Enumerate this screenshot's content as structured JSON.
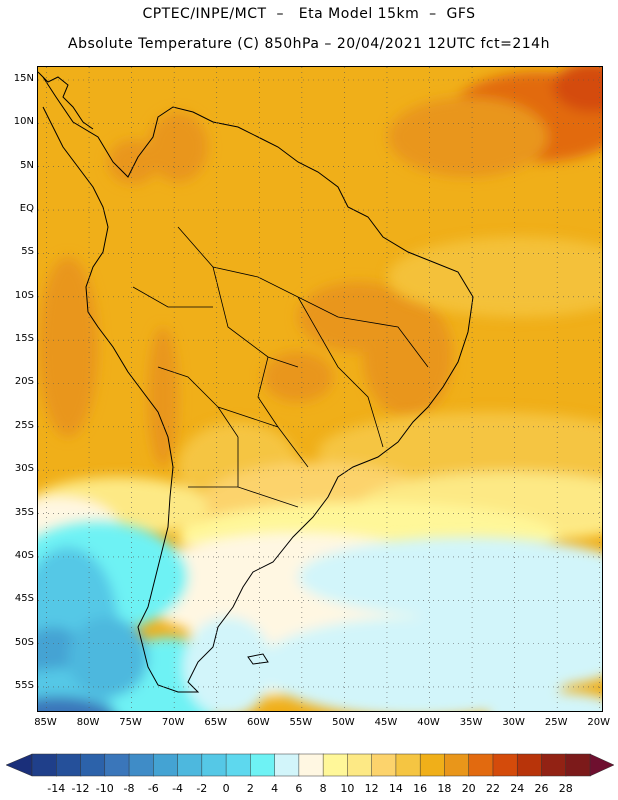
{
  "header": {
    "line1": "CPTEC/INPE/MCT  –   Eta Model 15km  –  GFS",
    "line2": "Absolute Temperature (C) 850hPa – 20/04/2021 12UTC fct=214h"
  },
  "map": {
    "lat_labels": [
      "15N",
      "10N",
      "5N",
      "EQ",
      "5S",
      "10S",
      "15S",
      "20S",
      "25S",
      "30S",
      "35S",
      "40S",
      "45S",
      "50S",
      "55S"
    ],
    "lon_labels": [
      "85W",
      "80W",
      "75W",
      "70W",
      "65W",
      "60W",
      "55W",
      "50W",
      "45W",
      "40W",
      "35W",
      "30W",
      "25W",
      "20W"
    ],
    "lat_values": [
      15,
      10,
      5,
      0,
      -5,
      -10,
      -15,
      -20,
      -25,
      -30,
      -35,
      -40,
      -45,
      -50,
      -55
    ],
    "lon_values": [
      -85,
      -80,
      -75,
      -70,
      -65,
      -60,
      -55,
      -50,
      -45,
      -40,
      -35,
      -30,
      -25,
      -20
    ],
    "lat_range": [
      -58,
      16.5
    ],
    "lon_range": [
      -86,
      -19.5
    ]
  },
  "colorbar": {
    "units": "C",
    "labels": [
      "-14",
      "-12",
      "-10",
      "-8",
      "-6",
      "-4",
      "-2",
      "0",
      "2",
      "4",
      "6",
      "8",
      "10",
      "12",
      "14",
      "16",
      "18",
      "20",
      "22",
      "24",
      "26",
      "28"
    ],
    "colors": [
      "#1f3f8a",
      "#25509a",
      "#2c62aa",
      "#3a76ba",
      "#3f8cc7",
      "#44a3d3",
      "#4db8de",
      "#55c8e6",
      "#5ed8ee",
      "#6ef2f4",
      "#d2f5fa",
      "#fff7e2",
      "#fff799",
      "#fde985",
      "#fcd36c",
      "#f5c542",
      "#f0af19",
      "#e9961a",
      "#e26a0f",
      "#d44b0b",
      "#b8340a",
      "#922214",
      "#7c1a1a"
    ],
    "under_color": "#1a2f7a",
    "over_color": "#6e0f2f"
  }
}
